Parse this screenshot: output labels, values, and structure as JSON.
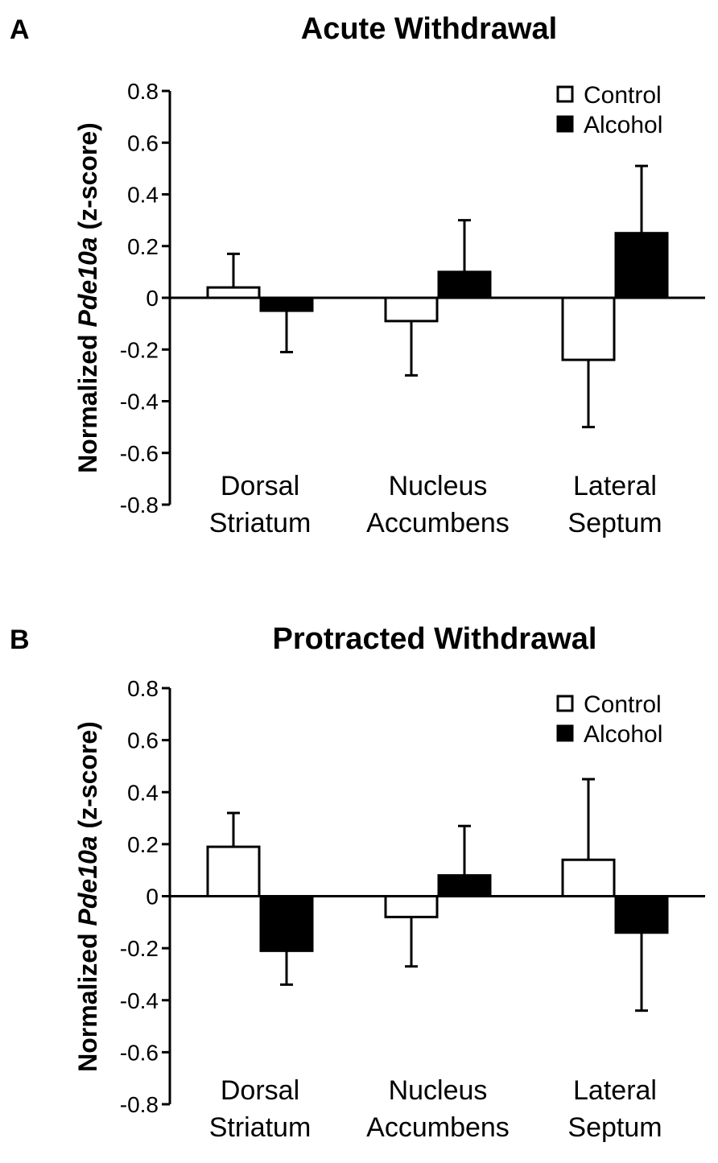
{
  "figure": {
    "panels": [
      {
        "letter": "A",
        "ylabel": {
          "prefix": "Normalized ",
          "gene": "Pde10a",
          "suffix": " (z-score)"
        },
        "chart": {
          "type": "bar",
          "title": "Acute Withdrawal",
          "ylabel": "Normalized Pde10a (z-score)",
          "ylim": [
            -0.8,
            0.8
          ],
          "yticks": [
            0.8,
            0.6,
            0.4,
            0.2,
            0,
            -0.2,
            -0.4,
            -0.6,
            -0.8
          ],
          "ytick_labels": [
            "0.8",
            "0.6",
            "0.4",
            "0.2",
            "0",
            "-0.2",
            "-0.4",
            "-0.6",
            "-0.8"
          ],
          "categories": [
            [
              "Dorsal",
              "Striatum"
            ],
            [
              "Nucleus",
              "Accumbens"
            ],
            [
              "Lateral",
              "Septum"
            ]
          ],
          "series": [
            {
              "name": "Control",
              "fill": "#ffffff",
              "values": [
                0.04,
                -0.09,
                -0.24
              ],
              "errors": [
                0.13,
                0.21,
                0.26
              ]
            },
            {
              "name": "Alcohol",
              "fill": "#000000",
              "values": [
                -0.05,
                0.1,
                0.25
              ],
              "errors": [
                0.16,
                0.2,
                0.26
              ]
            }
          ],
          "legend": "top-right",
          "grid": false
        }
      },
      {
        "letter": "B",
        "ylabel": {
          "prefix": "Normalized ",
          "gene": "Pde10a",
          "suffix": " (z-score)"
        },
        "chart": {
          "type": "bar",
          "title": "Protracted Withdrawal",
          "ylabel": "Normalized Pde10a (z-score)",
          "ylim": [
            -0.8,
            0.8
          ],
          "yticks": [
            0.8,
            0.6,
            0.4,
            0.2,
            0,
            -0.2,
            -0.4,
            -0.6,
            -0.8
          ],
          "ytick_labels": [
            "0.8",
            "0.6",
            "0.4",
            "0.2",
            "0",
            "-0.2",
            "-0.4",
            "-0.6",
            "-0.8"
          ],
          "categories": [
            [
              "Dorsal",
              "Striatum"
            ],
            [
              "Nucleus",
              "Accumbens"
            ],
            [
              "Lateral",
              "Septum"
            ]
          ],
          "series": [
            {
              "name": "Control",
              "fill": "#ffffff",
              "values": [
                0.19,
                -0.08,
                0.14
              ],
              "errors": [
                0.13,
                0.19,
                0.31
              ]
            },
            {
              "name": "Alcohol",
              "fill": "#000000",
              "values": [
                -0.21,
                0.08,
                -0.14
              ],
              "errors": [
                0.13,
                0.19,
                0.3
              ]
            }
          ],
          "legend": "top-right",
          "grid": false
        }
      }
    ]
  }
}
